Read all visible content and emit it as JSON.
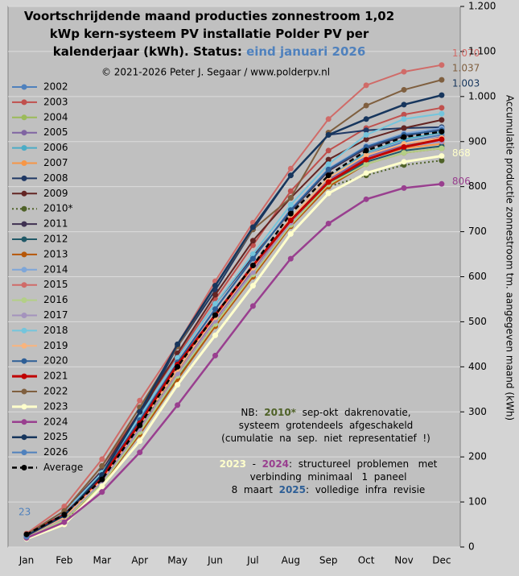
{
  "chart_data": {
    "type": "line",
    "title": [
      "Voortschrijdende  maand  producties  zonnestroom  1,02",
      "kWp  kern-systeem  PV  installatie  Polder  PV  per",
      "kalenderjaar  (kWh).  Status: "
    ],
    "status": "eind januari 2026",
    "subtitle": "© 2021-2026  Peter J. Segaar / www.polderpv.nl",
    "ylabel": "Accumulatie  productie  zonnestroom  tm.  aangegeven  maand  (kWh)",
    "categories": [
      "Jan",
      "Feb",
      "Mar",
      "Apr",
      "May",
      "Jun",
      "Jul",
      "Aug",
      "Sep",
      "Oct",
      "Nov",
      "Dec"
    ],
    "ylim": [
      0,
      1200
    ],
    "yticks": [
      0,
      100,
      200,
      300,
      400,
      500,
      600,
      700,
      800,
      900,
      {
        "value": 1000,
        "label": "1.000"
      },
      {
        "value": 1100,
        "label": "1.100"
      },
      {
        "value": 1200,
        "label": "1.200"
      }
    ],
    "grid": true,
    "legend": "left",
    "series": [
      {
        "name": "2002",
        "color": "#4f81bd",
        "values": [
          25,
          65,
          140,
          260,
          380,
          500,
          610,
          720,
          810,
          870,
          900,
          915
        ]
      },
      {
        "name": "2003",
        "color": "#c0504d",
        "values": [
          28,
          80,
          180,
          300,
          425,
          550,
          670,
          790,
          880,
          930,
          960,
          975
        ]
      },
      {
        "name": "2004",
        "color": "#9bbb59",
        "values": [
          22,
          60,
          145,
          260,
          385,
          500,
          610,
          720,
          810,
          860,
          890,
          905
        ]
      },
      {
        "name": "2005",
        "color": "#8064a2",
        "values": [
          24,
          65,
          150,
          265,
          390,
          505,
          615,
          725,
          815,
          865,
          893,
          910
        ]
      },
      {
        "name": "2006",
        "color": "#4bacc6",
        "values": [
          26,
          68,
          152,
          268,
          395,
          510,
          620,
          730,
          820,
          875,
          905,
          920
        ]
      },
      {
        "name": "2007",
        "color": "#f79646",
        "values": [
          22,
          62,
          145,
          262,
          388,
          500,
          610,
          722,
          812,
          860,
          885,
          895
        ]
      },
      {
        "name": "2008",
        "color": "#1f3864",
        "values": [
          25,
          68,
          155,
          290,
          445,
          570,
          705,
          825,
          915,
          925,
          930,
          932
        ]
      },
      {
        "name": "2009",
        "color": "#632523",
        "values": [
          28,
          78,
          170,
          300,
          430,
          560,
          680,
          775,
          860,
          905,
          930,
          948
        ]
      },
      {
        "name": "2010*",
        "color": "#4f6228",
        "dash": "2,3",
        "values": [
          20,
          55,
          150,
          265,
          385,
          500,
          610,
          720,
          800,
          825,
          848,
          858
        ]
      },
      {
        "name": "2011",
        "color": "#3f3151",
        "values": [
          27,
          75,
          170,
          290,
          420,
          540,
          645,
          745,
          835,
          885,
          912,
          928
        ]
      },
      {
        "name": "2012",
        "color": "#215967",
        "values": [
          23,
          63,
          140,
          255,
          375,
          495,
          605,
          715,
          805,
          855,
          880,
          890
        ]
      },
      {
        "name": "2013",
        "color": "#b65708",
        "values": [
          22,
          60,
          138,
          250,
          372,
          490,
          600,
          712,
          800,
          850,
          875,
          885
        ]
      },
      {
        "name": "2014",
        "color": "#7ea6d8",
        "values": [
          28,
          78,
          165,
          285,
          410,
          530,
          640,
          750,
          840,
          890,
          918,
          930
        ]
      },
      {
        "name": "2015",
        "color": "#d06b68",
        "values": [
          30,
          90,
          195,
          325,
          450,
          590,
          720,
          840,
          950,
          1025,
          1055,
          1070
        ],
        "value_labels": [
          null,
          null,
          null,
          null,
          null,
          null,
          null,
          null,
          null,
          null,
          null,
          "1.070"
        ]
      },
      {
        "name": "2016",
        "color": "#b3cf87",
        "values": [
          22,
          60,
          140,
          255,
          380,
          495,
          605,
          715,
          805,
          850,
          875,
          885
        ]
      },
      {
        "name": "2017",
        "color": "#a493bd",
        "values": [
          24,
          64,
          145,
          262,
          385,
          502,
          610,
          720,
          812,
          860,
          888,
          900
        ]
      },
      {
        "name": "2018",
        "color": "#74c5dc",
        "values": [
          25,
          75,
          165,
          290,
          420,
          540,
          650,
          760,
          850,
          915,
          950,
          962
        ]
      },
      {
        "name": "2019",
        "color": "#f9b47d",
        "values": [
          24,
          66,
          150,
          270,
          395,
          510,
          620,
          730,
          820,
          870,
          895,
          908
        ]
      },
      {
        "name": "2020",
        "color": "#2e5f96",
        "values": [
          26,
          70,
          158,
          282,
          410,
          528,
          640,
          748,
          838,
          888,
          915,
          925
        ]
      },
      {
        "name": "2021",
        "color": "#c00000",
        "width": 3,
        "values": [
          27,
          72,
          155,
          275,
          405,
          515,
          625,
          725,
          810,
          860,
          888,
          905
        ]
      },
      {
        "name": "2022",
        "color": "#7f5f3f",
        "values": [
          28,
          80,
          180,
          310,
          445,
          580,
          705,
          775,
          920,
          980,
          1015,
          1037
        ],
        "value_labels": [
          null,
          null,
          null,
          null,
          null,
          null,
          null,
          null,
          null,
          null,
          null,
          "1.037"
        ]
      },
      {
        "name": "2023",
        "color": "#ffffcc",
        "width": 3,
        "values": [
          18,
          50,
          135,
          235,
          360,
          470,
          580,
          695,
          785,
          830,
          855,
          868
        ],
        "value_labels": [
          null,
          null,
          null,
          null,
          null,
          null,
          null,
          null,
          null,
          null,
          null,
          "868"
        ]
      },
      {
        "name": "2024",
        "color": "#993f8f",
        "width": 2.5,
        "values": [
          20,
          55,
          122,
          210,
          315,
          425,
          535,
          640,
          718,
          772,
          797,
          806
        ],
        "value_labels": [
          null,
          null,
          null,
          null,
          null,
          null,
          null,
          null,
          null,
          null,
          null,
          "806"
        ]
      },
      {
        "name": "2025",
        "color": "#17365d",
        "width": 2.5,
        "values": [
          25,
          70,
          160,
          300,
          450,
          580,
          710,
          825,
          915,
          950,
          982,
          1003
        ],
        "value_labels": [
          null,
          null,
          null,
          null,
          null,
          null,
          null,
          null,
          null,
          null,
          null,
          "1.003"
        ]
      },
      {
        "name": "2026",
        "color": "#4f81bd",
        "values": [
          23,
          null,
          null,
          null,
          null,
          null,
          null,
          null,
          null,
          null,
          null,
          null
        ],
        "value_labels": [
          "23",
          null,
          null,
          null,
          null,
          null,
          null,
          null,
          null,
          null,
          null,
          null
        ]
      },
      {
        "name": "Average",
        "color": "#000000",
        "dash": "6,4",
        "width": 2.5,
        "values": [
          28,
          72,
          150,
          270,
          400,
          515,
          625,
          740,
          825,
          880,
          910,
          922
        ]
      }
    ],
    "annotations": [
      [
        [
          {
            "text": "NB:  "
          },
          {
            "text": "2010*",
            "color": "#4f6228"
          },
          {
            "text": "  sep-okt  dakrenovatie,"
          }
        ],
        [
          {
            "text": "systeem  grotendeels  afgeschakeld"
          }
        ],
        [
          {
            "text": "(cumulatie  na  sep.  niet  representatief  !)"
          }
        ]
      ],
      [
        [
          {
            "text": "2023",
            "color": "#ffffcc"
          },
          {
            "text": "  -  "
          },
          {
            "text": "2024",
            "color": "#993f8f"
          },
          {
            "text": ":  structureel  problemen   met"
          }
        ],
        [
          {
            "text": "verbinding  minimaal   1  paneel"
          }
        ],
        [
          {
            "text": "8  maart  "
          },
          {
            "text": "2025",
            "color": "#2e5f96"
          },
          {
            "text": ":  volledige  infra  revisie"
          }
        ]
      ]
    ]
  }
}
